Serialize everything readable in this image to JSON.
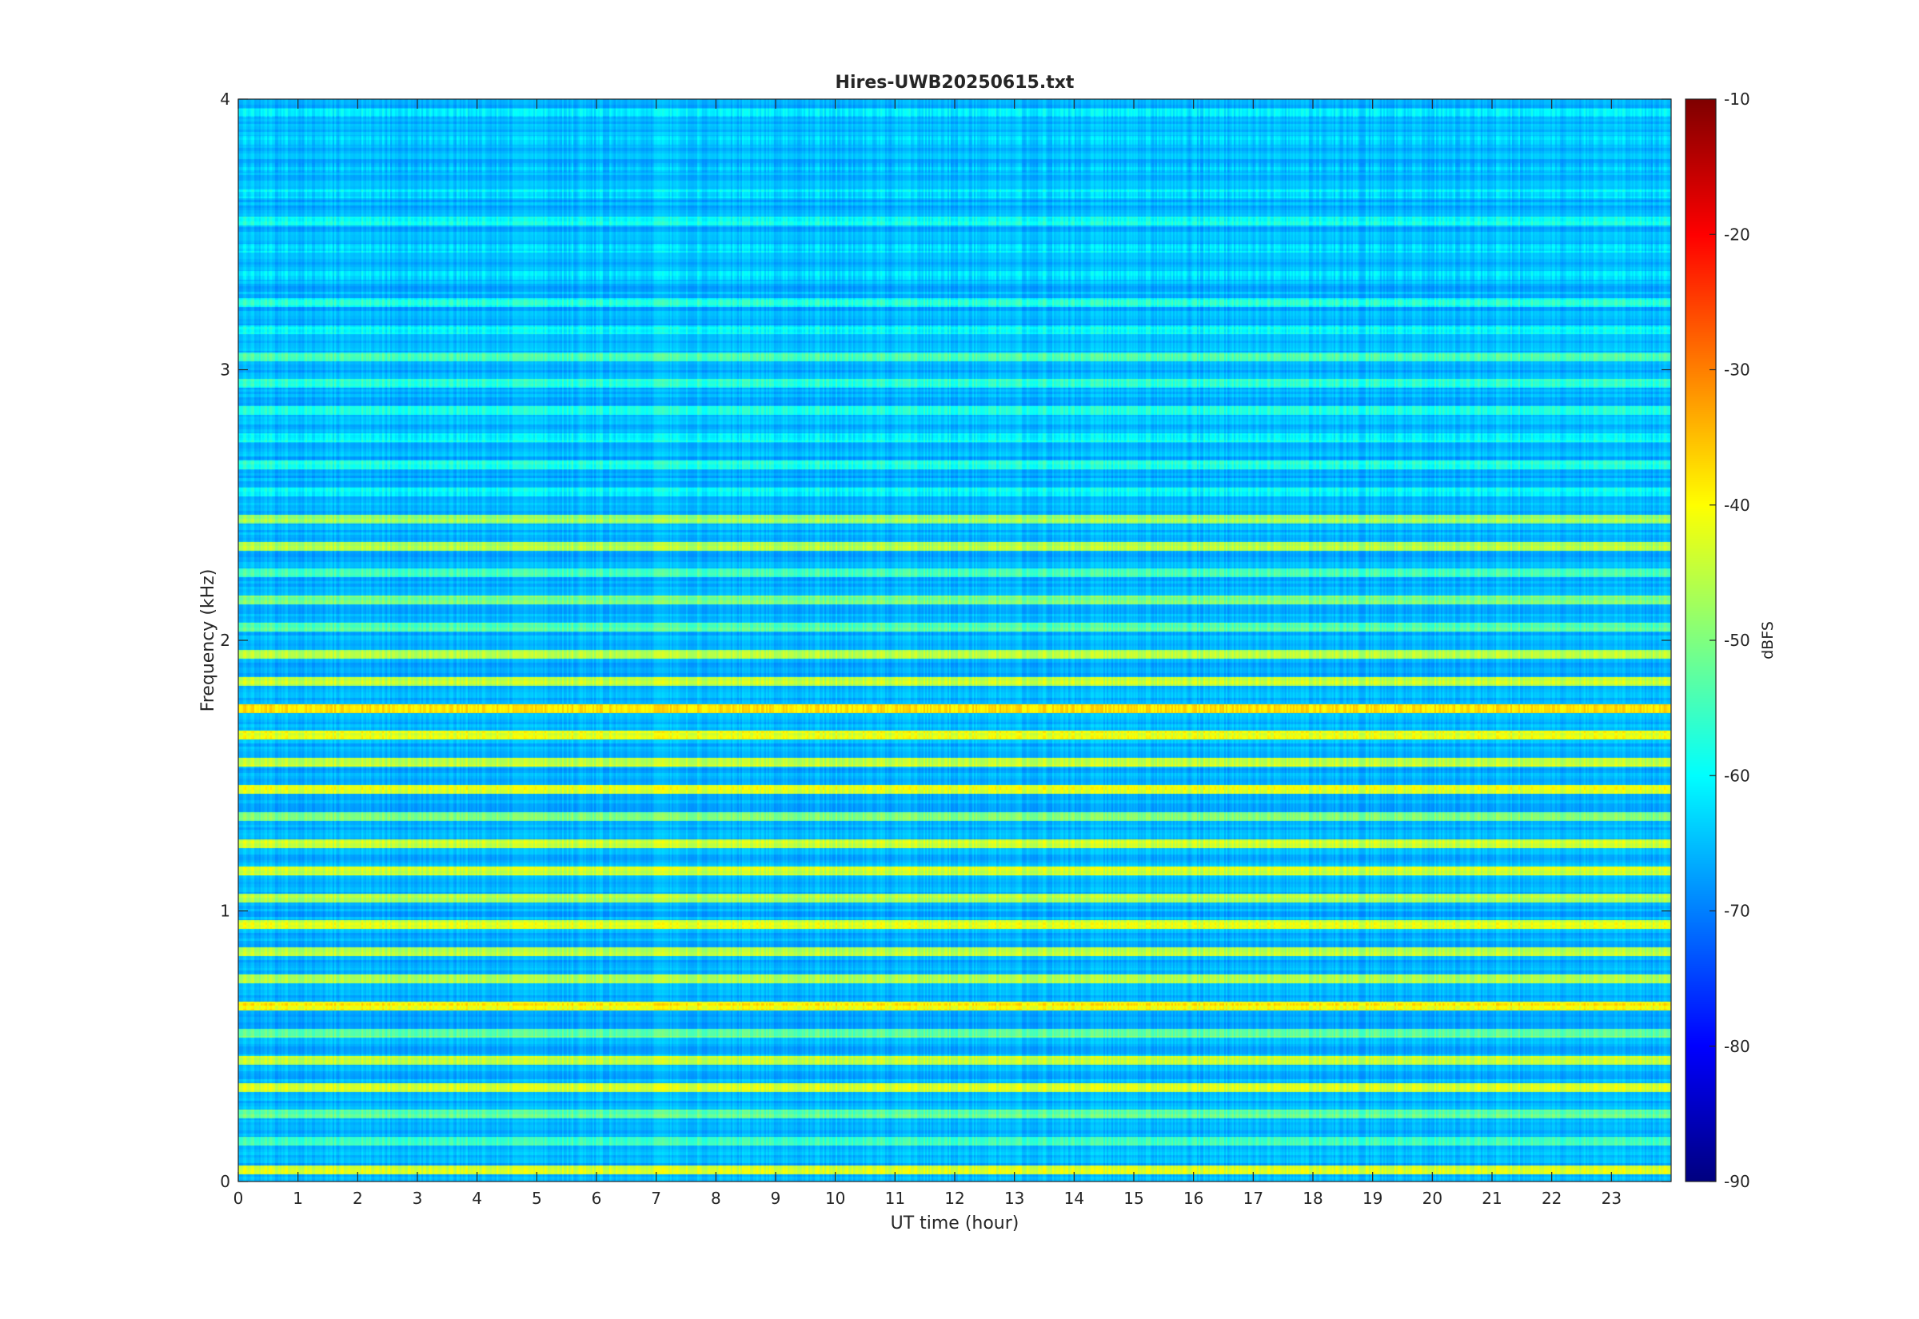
{
  "chart_data": {
    "type": "heatmap",
    "title": "Hires-UWB20250615.txt",
    "xlabel": "UT time (hour)",
    "ylabel": "Frequency (kHz)",
    "colorbar_label": "dBFS",
    "colormap": "jet",
    "xlim": [
      0,
      24
    ],
    "ylim": [
      0,
      4
    ],
    "clim": [
      -90,
      -10
    ],
    "x_ticks": [
      "0",
      "1",
      "2",
      "3",
      "4",
      "5",
      "6",
      "7",
      "8",
      "9",
      "10",
      "11",
      "12",
      "13",
      "14",
      "15",
      "16",
      "17",
      "18",
      "19",
      "20",
      "21",
      "22",
      "23"
    ],
    "y_ticks": [
      "0",
      "1",
      "2",
      "3",
      "4"
    ],
    "colorbar_ticks": [
      "-10",
      "-20",
      "-30",
      "-40",
      "-50",
      "-60",
      "-70",
      "-80",
      "-90"
    ],
    "bands": [
      {
        "f": 0.045,
        "db": -42
      },
      {
        "f": 0.15,
        "db": -54
      },
      {
        "f": 0.25,
        "db": -52
      },
      {
        "f": 0.35,
        "db": -44
      },
      {
        "f": 0.45,
        "db": -45
      },
      {
        "f": 0.55,
        "db": -52
      },
      {
        "f": 0.65,
        "db": -40
      },
      {
        "f": 0.75,
        "db": -47
      },
      {
        "f": 0.85,
        "db": -45
      },
      {
        "f": 0.95,
        "db": -43
      },
      {
        "f": 1.05,
        "db": -46
      },
      {
        "f": 1.15,
        "db": -44
      },
      {
        "f": 1.25,
        "db": -44
      },
      {
        "f": 1.35,
        "db": -50
      },
      {
        "f": 1.45,
        "db": -42
      },
      {
        "f": 1.55,
        "db": -44
      },
      {
        "f": 1.65,
        "db": -42
      },
      {
        "f": 1.75,
        "db": -38
      },
      {
        "f": 1.85,
        "db": -45
      },
      {
        "f": 1.95,
        "db": -47
      },
      {
        "f": 2.05,
        "db": -54
      },
      {
        "f": 2.15,
        "db": -50
      },
      {
        "f": 2.25,
        "db": -55
      },
      {
        "f": 2.35,
        "db": -46
      },
      {
        "f": 2.45,
        "db": -48
      },
      {
        "f": 2.55,
        "db": -60
      },
      {
        "f": 2.65,
        "db": -58
      },
      {
        "f": 2.75,
        "db": -60
      },
      {
        "f": 2.85,
        "db": -58
      },
      {
        "f": 2.95,
        "db": -57
      },
      {
        "f": 3.05,
        "db": -55
      },
      {
        "f": 3.15,
        "db": -60
      },
      {
        "f": 3.25,
        "db": -58
      },
      {
        "f": 3.35,
        "db": -62
      },
      {
        "f": 3.45,
        "db": -62
      },
      {
        "f": 3.55,
        "db": -59
      },
      {
        "f": 3.65,
        "db": -62
      },
      {
        "f": 3.75,
        "db": -65
      },
      {
        "f": 3.85,
        "db": -64
      },
      {
        "f": 3.95,
        "db": -62
      }
    ],
    "background_db": -66,
    "grid": false,
    "legend": "none"
  }
}
